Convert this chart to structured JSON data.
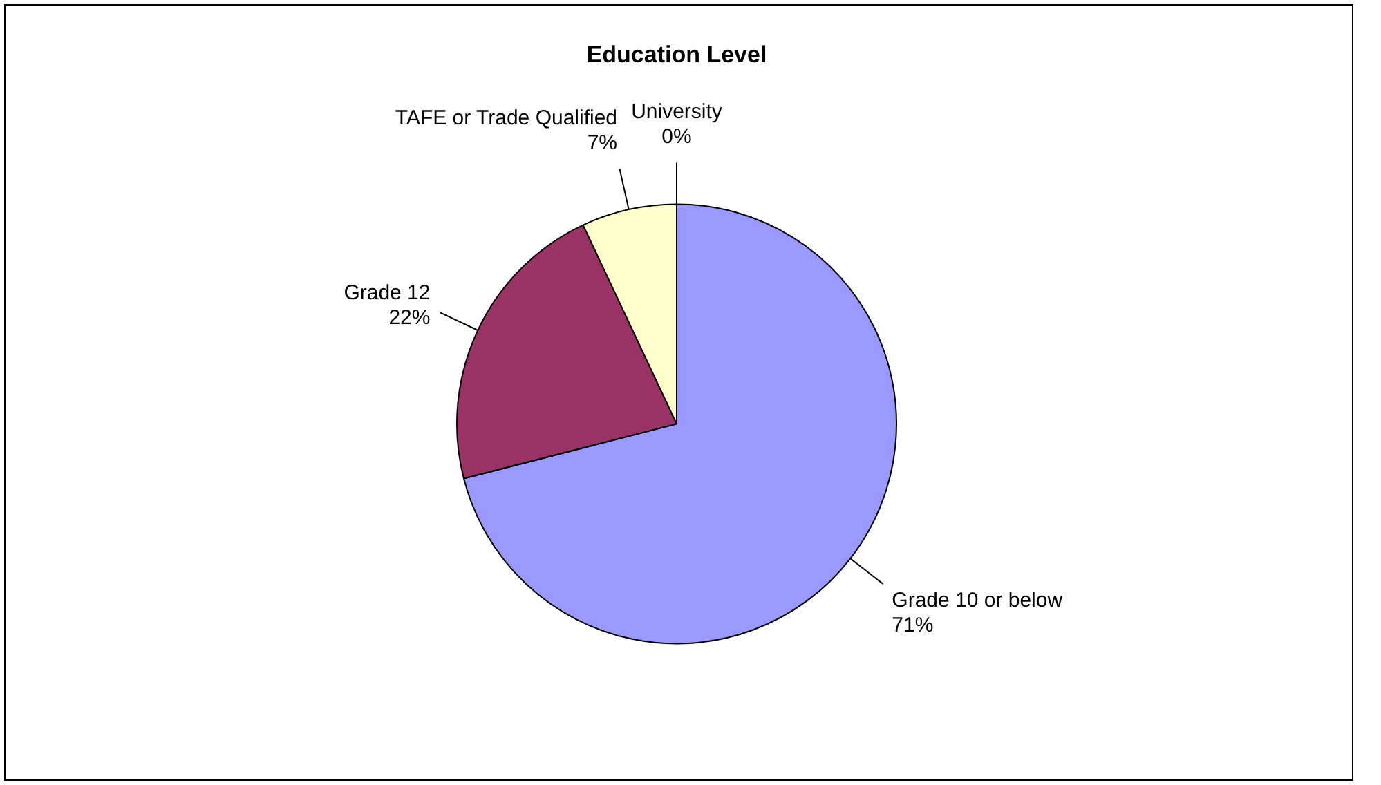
{
  "chart_data": {
    "type": "pie",
    "title": "Education Level",
    "categories": [
      "Grade 10 or below",
      "Grade 12",
      "TAFE or Trade Qualified",
      "University"
    ],
    "values": [
      71,
      22,
      7,
      0
    ],
    "value_labels": [
      "71%",
      "22%",
      "7%",
      "0%"
    ],
    "colors": [
      "#9999ff",
      "#993366",
      "#ffffcc",
      "#ccffff"
    ],
    "legend": false
  }
}
